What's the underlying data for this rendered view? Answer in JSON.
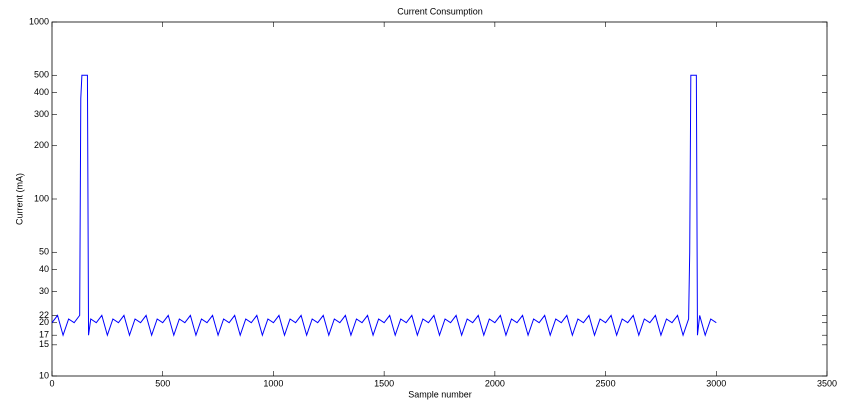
{
  "chart_data": {
    "type": "line",
    "title": "Current Consumption",
    "x_label": "Sample number",
    "y_label": "Current (mA)",
    "log_y": true,
    "grid": false,
    "xlim": [
      0,
      3500
    ],
    "xticks": [
      0,
      500,
      1000,
      1500,
      2000,
      2500,
      3000,
      3500
    ],
    "ylim": [
      10,
      1000
    ],
    "yticks": [
      10,
      15,
      17,
      20,
      22,
      30,
      40,
      50,
      100,
      200,
      300,
      400,
      500,
      1000
    ],
    "x": [
      0,
      25,
      50,
      75,
      100,
      125,
      130,
      135,
      160,
      165,
      175,
      200,
      225,
      250,
      275,
      300,
      325,
      350,
      375,
      400,
      425,
      450,
      475,
      500,
      525,
      550,
      575,
      600,
      625,
      650,
      675,
      700,
      725,
      750,
      775,
      800,
      825,
      850,
      875,
      900,
      925,
      950,
      975,
      1000,
      1025,
      1050,
      1075,
      1100,
      1125,
      1150,
      1175,
      1200,
      1225,
      1250,
      1275,
      1300,
      1325,
      1350,
      1375,
      1400,
      1425,
      1450,
      1475,
      1500,
      1525,
      1550,
      1575,
      1600,
      1625,
      1650,
      1675,
      1700,
      1725,
      1750,
      1775,
      1800,
      1825,
      1850,
      1875,
      1900,
      1925,
      1950,
      1975,
      2000,
      2025,
      2050,
      2075,
      2100,
      2125,
      2150,
      2175,
      2200,
      2225,
      2250,
      2275,
      2300,
      2325,
      2350,
      2375,
      2400,
      2425,
      2450,
      2475,
      2500,
      2525,
      2550,
      2575,
      2600,
      2625,
      2650,
      2675,
      2700,
      2725,
      2750,
      2775,
      2800,
      2825,
      2850,
      2875,
      2880,
      2885,
      2910,
      2915,
      2925,
      2950,
      2975,
      3000
    ],
    "series": [
      {
        "color": "#0000ff",
        "values": [
          20,
          22,
          17,
          21,
          20,
          22,
          370,
          500,
          500,
          17,
          21,
          20,
          22,
          17,
          21,
          20,
          22,
          17,
          21,
          20,
          22,
          17,
          21,
          20,
          22,
          17,
          21,
          20,
          22,
          17,
          21,
          20,
          22,
          17,
          21,
          20,
          22,
          17,
          21,
          20,
          22,
          17,
          21,
          20,
          22,
          17,
          21,
          20,
          22,
          17,
          21,
          20,
          22,
          17,
          21,
          20,
          22,
          17,
          21,
          20,
          22,
          17,
          21,
          20,
          22,
          17,
          21,
          20,
          22,
          17,
          21,
          20,
          22,
          17,
          21,
          20,
          22,
          17,
          21,
          20,
          22,
          17,
          21,
          20,
          22,
          17,
          21,
          20,
          22,
          17,
          21,
          20,
          22,
          17,
          21,
          20,
          22,
          17,
          21,
          20,
          22,
          17,
          21,
          20,
          22,
          17,
          21,
          20,
          22,
          17,
          21,
          20,
          22,
          17,
          21,
          20,
          22,
          17,
          21,
          50,
          500,
          500,
          17,
          22,
          17,
          21,
          20
        ]
      }
    ]
  }
}
